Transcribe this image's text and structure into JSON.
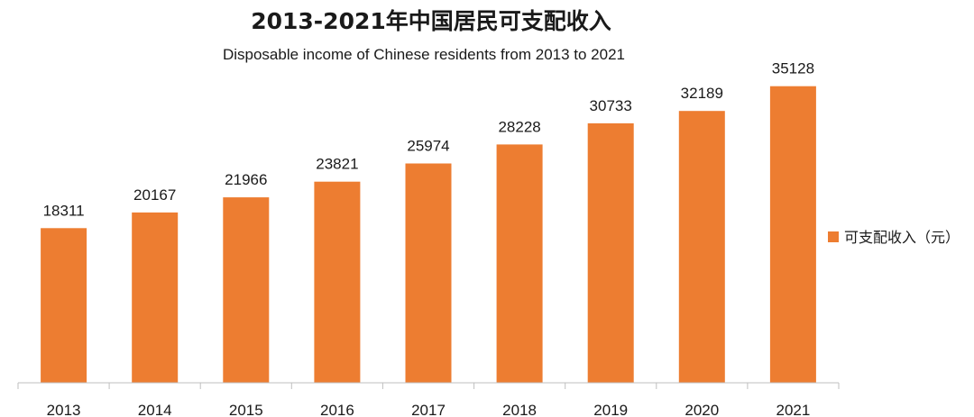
{
  "chart_data": {
    "type": "bar",
    "title": "2013-2021年中国居民可支配收入",
    "subtitle": "Disposable income of Chinese residents from 2013 to 2021",
    "categories": [
      "2013",
      "2014",
      "2015",
      "2016",
      "2017",
      "2018",
      "2019",
      "2020",
      "2021"
    ],
    "series": [
      {
        "name": "可支配收入（元）",
        "values": [
          18311,
          20167,
          21966,
          23821,
          25974,
          28228,
          30733,
          32189,
          35128
        ],
        "color": "#ED7D31"
      }
    ],
    "ylim": [
      0,
      40000
    ],
    "grid": false,
    "legend": "right"
  }
}
